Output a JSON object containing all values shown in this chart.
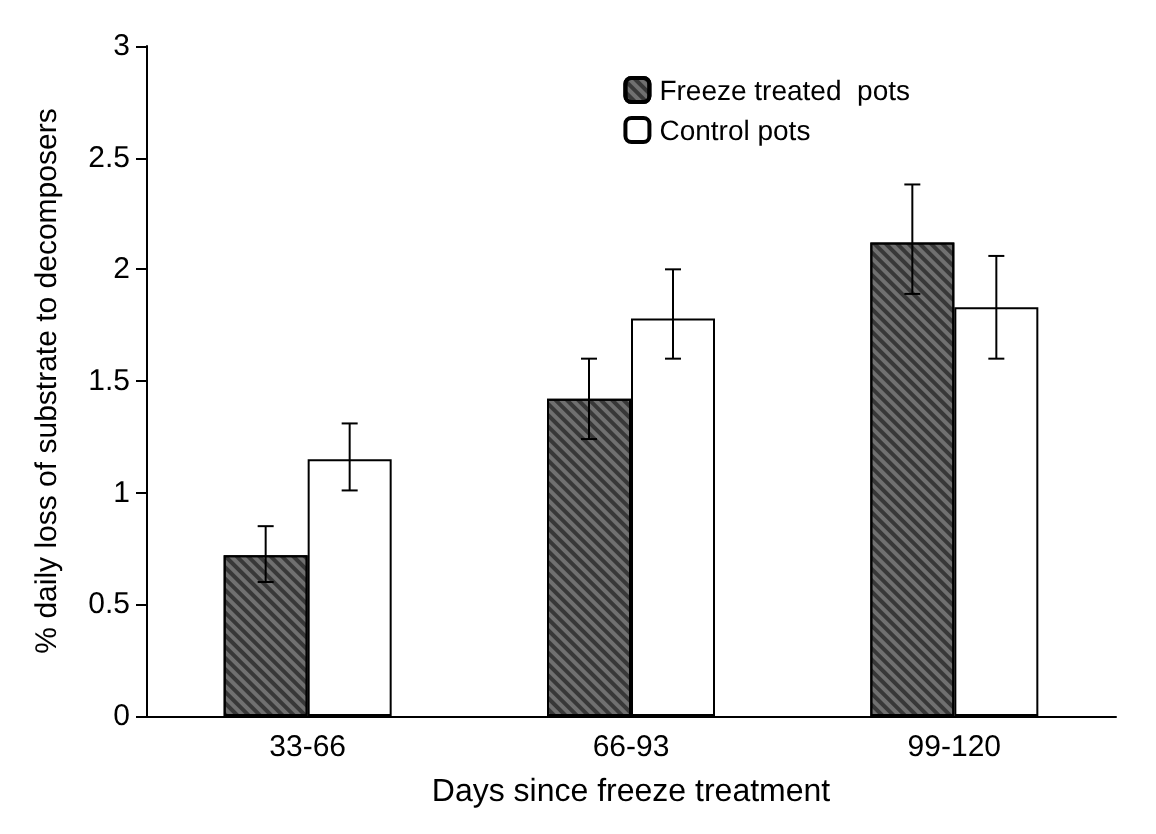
{
  "chart_data": {
    "type": "bar",
    "xlabel": "Days since freeze treatment",
    "ylabel": "% daily loss of substrate to decomposers",
    "categories": [
      "33-66",
      "66-93",
      "99-120"
    ],
    "series": [
      {
        "name": "Freeze treated  pots",
        "color": "#707070",
        "values": [
          0.72,
          1.42,
          2.12
        ],
        "errors": [
          [
            0.6,
            0.85
          ],
          [
            1.24,
            1.6
          ],
          [
            1.89,
            2.38
          ]
        ]
      },
      {
        "name": "Control pots",
        "color": "#ffffff",
        "values": [
          1.15,
          1.78,
          1.83
        ],
        "errors": [
          [
            1.01,
            1.31
          ],
          [
            1.6,
            2.0
          ],
          [
            1.6,
            2.06
          ]
        ]
      }
    ],
    "ylim": [
      0,
      3
    ],
    "yticks": [
      0,
      0.5,
      1,
      1.5,
      2,
      2.5,
      3
    ],
    "grid": false,
    "legend": "top right"
  }
}
